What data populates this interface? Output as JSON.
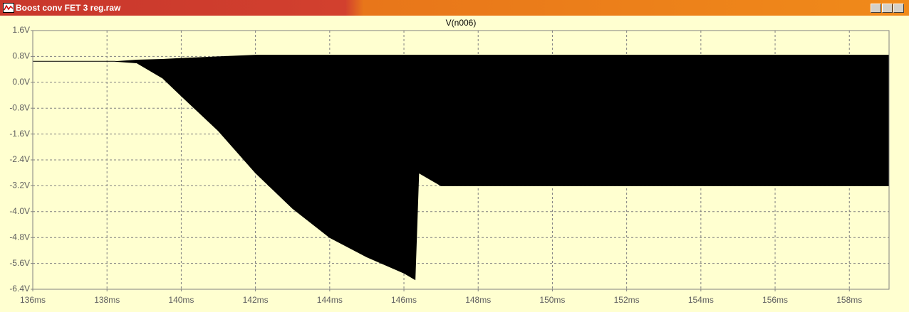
{
  "window": {
    "title": "Boost conv FET 3 reg.raw"
  },
  "chart_data": {
    "type": "band",
    "title": "V(n006)",
    "x": [
      136,
      138.2,
      138.8,
      139.5,
      140,
      141,
      142,
      143,
      144,
      145,
      146,
      146.3,
      146.4,
      147,
      150,
      155,
      159.07
    ],
    "series": [
      {
        "color": "#000000",
        "values": [
          0.65,
          0.65,
          0.7,
          0.72,
          0.75,
          0.8,
          0.85,
          0.85,
          0.85,
          0.85,
          0.85,
          0.85,
          0.85,
          0.85,
          0.85,
          0.85,
          0.85
        ]
      },
      {
        "color": "#000000",
        "values": [
          0.65,
          0.65,
          0.6,
          0.13,
          -0.42,
          -1.5,
          -2.8,
          -3.9,
          -4.8,
          -5.4,
          -5.9,
          -6.1,
          -2.8,
          -3.2,
          -3.2,
          -3.2,
          -3.2
        ]
      }
    ],
    "xlim": [
      136,
      159.07
    ],
    "ylim": [
      -6.4,
      1.6
    ],
    "xticks": [
      {
        "value": 136,
        "label": "136ms"
      },
      {
        "value": 138,
        "label": "138ms"
      },
      {
        "value": 140,
        "label": "140ms"
      },
      {
        "value": 142,
        "label": "142ms"
      },
      {
        "value": 144,
        "label": "144ms"
      },
      {
        "value": 146,
        "label": "146ms"
      },
      {
        "value": 148,
        "label": "148ms"
      },
      {
        "value": 150,
        "label": "150ms"
      },
      {
        "value": 152,
        "label": "152ms"
      },
      {
        "value": 154,
        "label": "154ms"
      },
      {
        "value": 156,
        "label": "156ms"
      },
      {
        "value": 158,
        "label": "158ms"
      }
    ],
    "yticks": [
      {
        "value": 1.6,
        "label": "1.6V"
      },
      {
        "value": 0.8,
        "label": "0.8V"
      },
      {
        "value": 0,
        "label": "0.0V"
      },
      {
        "value": -0.8,
        "label": "-0.8V"
      },
      {
        "value": -1.6,
        "label": "-1.6V"
      },
      {
        "value": -2.4,
        "label": "-2.4V"
      },
      {
        "value": -3.2,
        "label": "-3.2V"
      },
      {
        "value": -4,
        "label": "-4.0V"
      },
      {
        "value": -4.8,
        "label": "-4.8V"
      },
      {
        "value": -5.6,
        "label": "-5.6V"
      },
      {
        "value": -6.4,
        "label": "-6.4V"
      }
    ],
    "grid": true
  }
}
